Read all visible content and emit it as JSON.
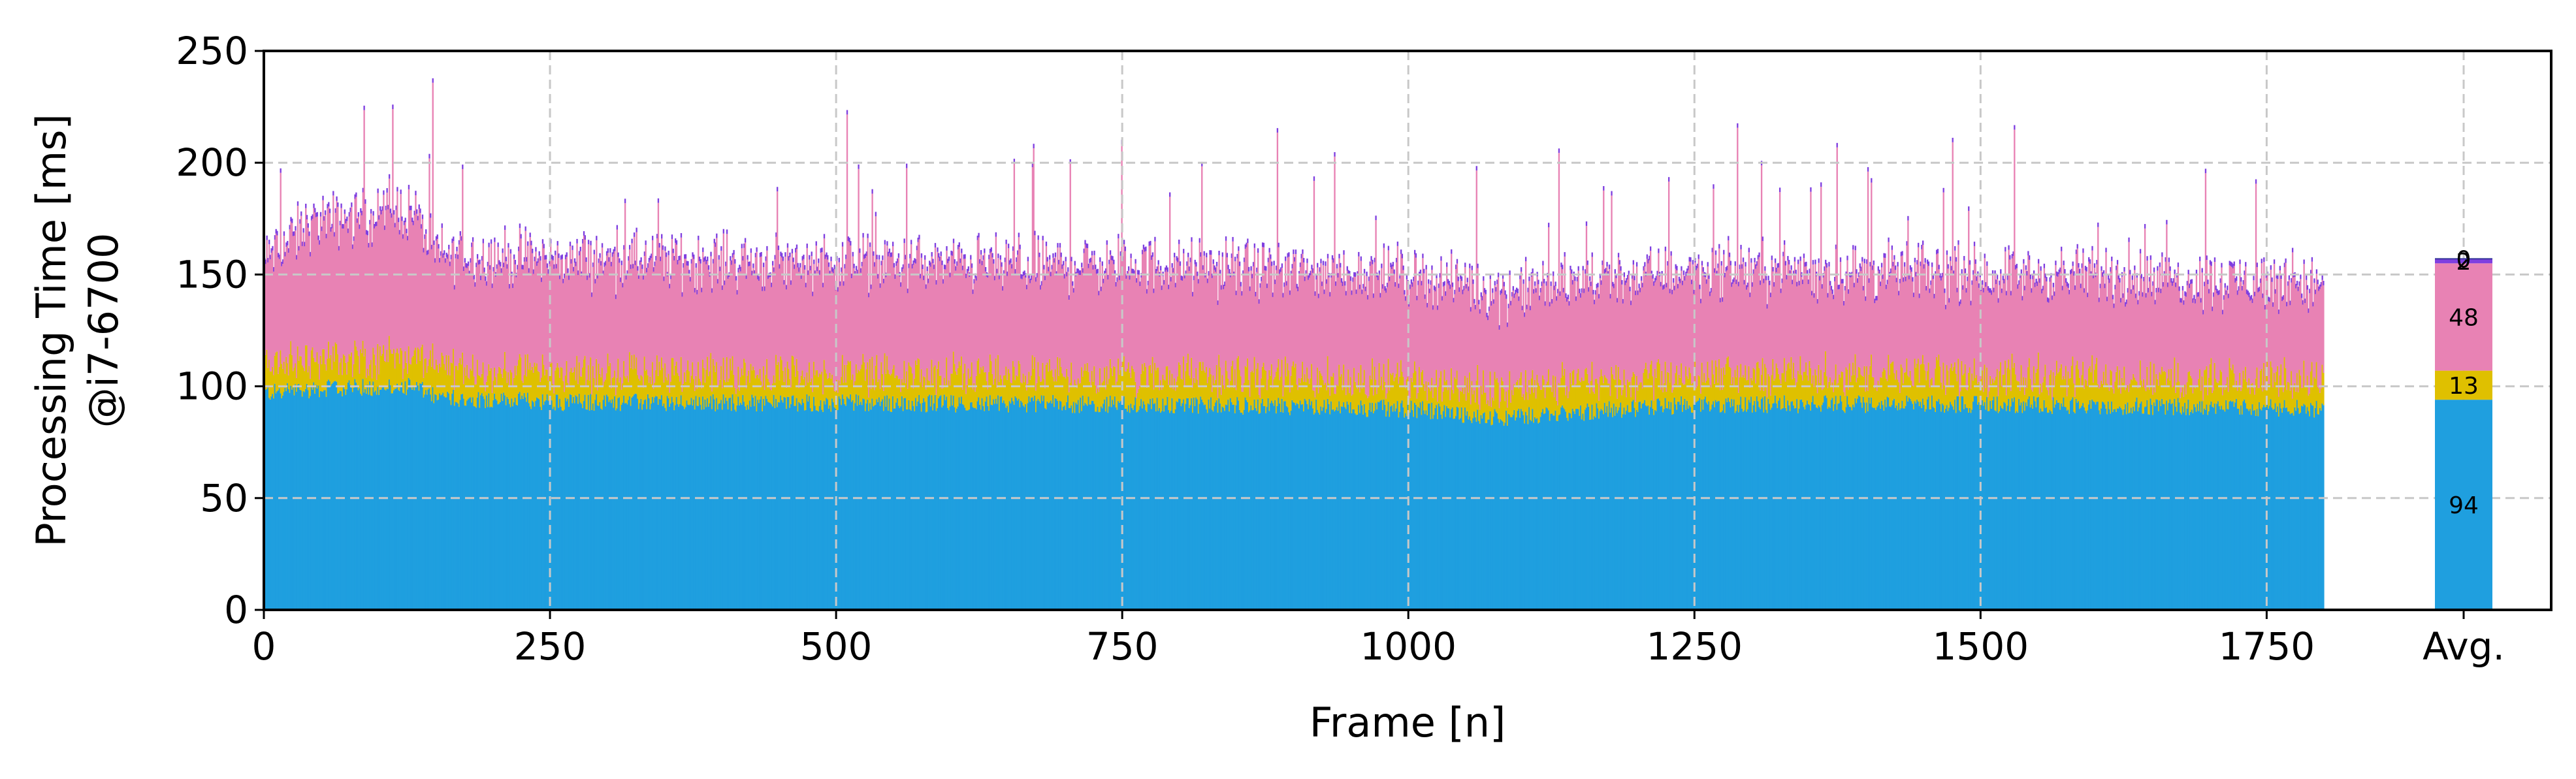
{
  "chart_data": {
    "type": "bar",
    "stacked": true,
    "xlabel": "Frame [n]",
    "ylabel": [
      "Processing Time [ms]",
      "@i7-6700"
    ],
    "xlim": [
      0,
      1800
    ],
    "ylim": [
      0,
      250
    ],
    "xticks": [
      0,
      250,
      500,
      750,
      1000,
      1250,
      1500,
      1750
    ],
    "xtick_labels": [
      "0",
      "250",
      "500",
      "750",
      "1000",
      "1250",
      "1500",
      "1750"
    ],
    "yticks": [
      0,
      50,
      100,
      150,
      200,
      250
    ],
    "ytick_labels": [
      "0",
      "50",
      "100",
      "150",
      "200",
      "250"
    ],
    "avg_label": "Avg.",
    "grid": true,
    "series": [
      {
        "color": "#1f9fdf",
        "avg": 94,
        "avg_label": "94",
        "profile": [
          [
            0,
            97
          ],
          [
            50,
            99
          ],
          [
            130,
            100
          ],
          [
            150,
            95
          ],
          [
            250,
            93
          ],
          [
            750,
            92
          ],
          [
            1000,
            90
          ],
          [
            1080,
            86
          ],
          [
            1250,
            92
          ],
          [
            1500,
            92
          ],
          [
            1800,
            90
          ]
        ]
      },
      {
        "color": "#dfc000",
        "avg": 13,
        "avg_label": "13",
        "profile": [
          [
            0,
            13
          ],
          [
            1800,
            13
          ]
        ]
      },
      {
        "color": "#e882b4",
        "avg": 48,
        "avg_label": "48",
        "profile": [
          [
            0,
            45
          ],
          [
            40,
            60
          ],
          [
            130,
            65
          ],
          [
            150,
            50
          ],
          [
            750,
            48
          ],
          [
            1000,
            46
          ],
          [
            1080,
            42
          ],
          [
            1250,
            46
          ],
          [
            1800,
            42
          ]
        ]
      },
      {
        "color": "#7f3fe0",
        "avg": 2,
        "avg_label": "2",
        "profile": [
          [
            0,
            2
          ],
          [
            1800,
            2
          ]
        ]
      },
      {
        "color": "#333399",
        "avg": 0,
        "avg_label": "0",
        "profile": [
          [
            0,
            0
          ],
          [
            1800,
            0
          ]
        ]
      }
    ]
  }
}
